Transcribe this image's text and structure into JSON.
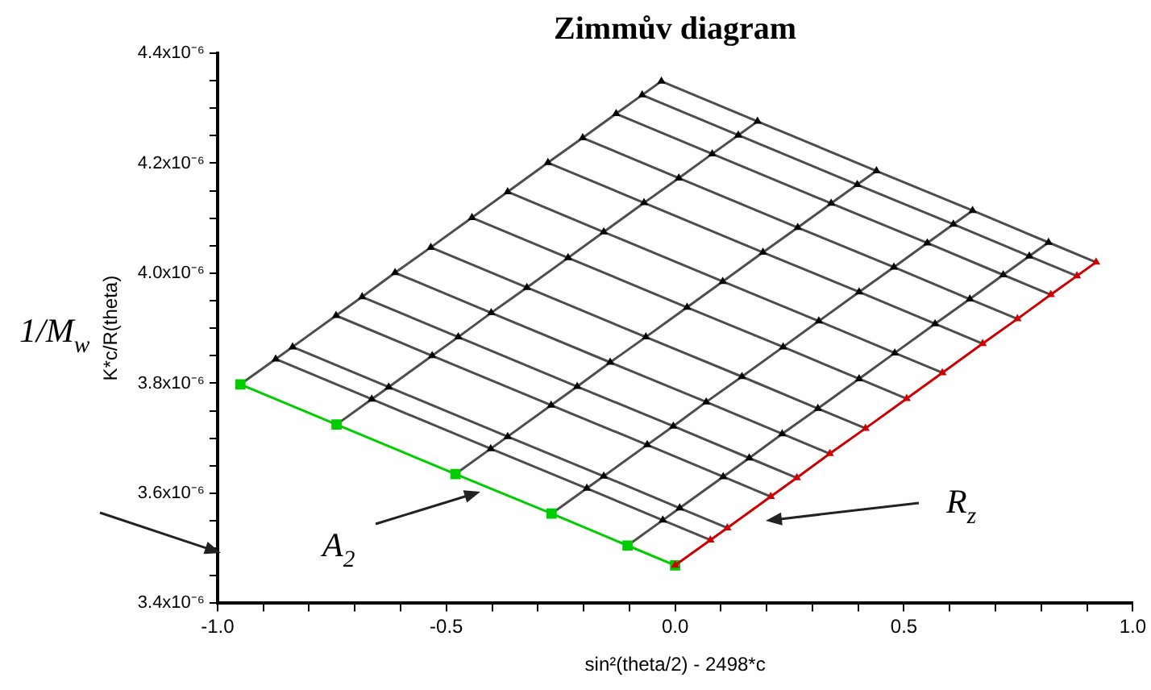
{
  "chart_data": {
    "type": "line",
    "title": "Zimmův diagram",
    "xlabel": "sin²(theta/2) - 2498*c",
    "ylabel": "K*c/R(theta)",
    "xlim": [
      -1.0,
      1.0
    ],
    "xticks": [
      {
        "value": -1.0,
        "label": "-1.0"
      },
      {
        "value": -0.9,
        "label": null
      },
      {
        "value": -0.8,
        "label": null
      },
      {
        "value": -0.7,
        "label": null
      },
      {
        "value": -0.6,
        "label": null
      },
      {
        "value": -0.5,
        "label": "-0.5"
      },
      {
        "value": -0.4,
        "label": null
      },
      {
        "value": -0.3,
        "label": null
      },
      {
        "value": -0.2,
        "label": null
      },
      {
        "value": -0.1,
        "label": null
      },
      {
        "value": 0.0,
        "label": "0.0"
      },
      {
        "value": 0.1,
        "label": null
      },
      {
        "value": 0.2,
        "label": null
      },
      {
        "value": 0.3,
        "label": null
      },
      {
        "value": 0.4,
        "label": null
      },
      {
        "value": 0.5,
        "label": "0.5"
      },
      {
        "value": 0.6,
        "label": null
      },
      {
        "value": 0.7,
        "label": null
      },
      {
        "value": 0.8,
        "label": null
      },
      {
        "value": 0.9,
        "label": null
      },
      {
        "value": 1.0,
        "label": "1.0"
      }
    ],
    "ylim": [
      3.4e-06,
      4.4e-06
    ],
    "yticks": [
      {
        "value": 3.4e-06,
        "label": "3.4x10⁻⁶"
      },
      {
        "value": 3.45e-06,
        "label": null
      },
      {
        "value": 3.5e-06,
        "label": null
      },
      {
        "value": 3.55e-06,
        "label": null
      },
      {
        "value": 3.6e-06,
        "label": "3.6x10⁻⁶"
      },
      {
        "value": 3.65e-06,
        "label": null
      },
      {
        "value": 3.7e-06,
        "label": null
      },
      {
        "value": 3.75e-06,
        "label": null
      },
      {
        "value": 3.8e-06,
        "label": "3.8x10⁻⁶"
      },
      {
        "value": 3.85e-06,
        "label": null
      },
      {
        "value": 3.9e-06,
        "label": null
      },
      {
        "value": 3.95e-06,
        "label": null
      },
      {
        "value": 4e-06,
        "label": "4.0x10⁻⁶"
      },
      {
        "value": 4.05e-06,
        "label": null
      },
      {
        "value": 4.1e-06,
        "label": null
      },
      {
        "value": 4.15e-06,
        "label": null
      },
      {
        "value": 4.2e-06,
        "label": "4.2x10⁻⁶"
      },
      {
        "value": 4.25e-06,
        "label": null
      },
      {
        "value": 4.3e-06,
        "label": null
      },
      {
        "value": 4.35e-06,
        "label": null
      },
      {
        "value": 4.4e-06,
        "label": "4.4x10⁻⁶"
      }
    ],
    "annotations": [
      "1/M$_{w}$",
      "A$_{2}$",
      "R$_{z}$"
    ],
    "series": [
      {
        "type": "line",
        "color": "#4d4d4d",
        "marker": "none",
        "x": [
          -0.104,
          -0.027,
          0.01,
          0.105,
          0.162,
          0.234,
          0.312,
          0.402,
          0.48,
          0.568,
          0.644,
          0.717,
          0.774,
          0.816
        ],
        "values": [
          3.505e-06,
          3.551e-06,
          3.573e-06,
          3.63e-06,
          3.664e-06,
          3.708e-06,
          3.754e-06,
          3.808e-06,
          3.855e-06,
          3.908e-06,
          3.953e-06,
          3.997e-06,
          4.031e-06,
          4.056e-06
        ]
      },
      {
        "type": "line",
        "color": "#4d4d4d",
        "marker": "none",
        "x": [
          -0.27,
          -0.193,
          -0.156,
          -0.061,
          -0.004,
          0.068,
          0.146,
          0.236,
          0.314,
          0.402,
          0.478,
          0.551,
          0.608,
          0.65
        ],
        "values": [
          3.563e-06,
          3.609e-06,
          3.631e-06,
          3.688e-06,
          3.722e-06,
          3.766e-06,
          3.812e-06,
          3.866e-06,
          3.913e-06,
          3.966e-06,
          4.011e-06,
          4.055e-06,
          4.089e-06,
          4.114e-06
        ]
      },
      {
        "type": "line",
        "color": "#4d4d4d",
        "marker": "none",
        "x": [
          -0.48,
          -0.403,
          -0.366,
          -0.271,
          -0.214,
          -0.142,
          -0.064,
          0.026,
          0.104,
          0.192,
          0.268,
          0.341,
          0.398,
          0.44
        ],
        "values": [
          3.635e-06,
          3.681e-06,
          3.703e-06,
          3.76e-06,
          3.794e-06,
          3.838e-06,
          3.884e-06,
          3.938e-06,
          3.985e-06,
          4.038e-06,
          4.083e-06,
          4.127e-06,
          4.161e-06,
          4.186e-06
        ]
      },
      {
        "type": "line",
        "color": "#4d4d4d",
        "marker": "none",
        "x": [
          -0.74,
          -0.663,
          -0.626,
          -0.531,
          -0.474,
          -0.402,
          -0.324,
          -0.234,
          -0.156,
          -0.068,
          0.008,
          0.081,
          0.138,
          0.18
        ],
        "values": [
          3.725e-06,
          3.771e-06,
          3.793e-06,
          3.85e-06,
          3.884e-06,
          3.928e-06,
          3.974e-06,
          4.028e-06,
          4.075e-06,
          4.128e-06,
          4.173e-06,
          4.217e-06,
          4.251e-06,
          4.276e-06
        ]
      },
      {
        "type": "line",
        "color": "#4d4d4d",
        "marker": "none",
        "x": [
          -0.95,
          -0.873,
          -0.836,
          -0.741,
          -0.684,
          -0.612,
          -0.534,
          -0.444,
          -0.366,
          -0.278,
          -0.202,
          -0.129,
          -0.072,
          -0.03
        ],
        "values": [
          3.798e-06,
          3.844e-06,
          3.866e-06,
          3.923e-06,
          3.957e-06,
          4.001e-06,
          4.047e-06,
          4.101e-06,
          4.148e-06,
          4.201e-06,
          4.246e-06,
          4.29e-06,
          4.324e-06,
          4.349e-06
        ]
      },
      {
        "type": "line",
        "color": "#4d4d4d",
        "marker": "none",
        "x": [
          -0.873,
          -0.663,
          -0.403,
          -0.193,
          -0.027,
          0.077
        ],
        "values": [
          3.844e-06,
          3.771e-06,
          3.681e-06,
          3.609e-06,
          3.551e-06,
          3.515e-06
        ]
      },
      {
        "type": "line",
        "color": "#4d4d4d",
        "marker": "none",
        "x": [
          -0.836,
          -0.626,
          -0.366,
          -0.156,
          0.01,
          0.114
        ],
        "values": [
          3.866e-06,
          3.793e-06,
          3.703e-06,
          3.631e-06,
          3.573e-06,
          3.537e-06
        ]
      },
      {
        "type": "line",
        "color": "#4d4d4d",
        "marker": "none",
        "x": [
          -0.741,
          -0.531,
          -0.271,
          -0.061,
          0.105,
          0.209
        ],
        "values": [
          3.923e-06,
          3.85e-06,
          3.76e-06,
          3.688e-06,
          3.63e-06,
          3.594e-06
        ]
      },
      {
        "type": "line",
        "color": "#4d4d4d",
        "marker": "none",
        "x": [
          -0.684,
          -0.474,
          -0.214,
          -0.004,
          0.162,
          0.266
        ],
        "values": [
          3.957e-06,
          3.884e-06,
          3.794e-06,
          3.722e-06,
          3.664e-06,
          3.628e-06
        ]
      },
      {
        "type": "line",
        "color": "#4d4d4d",
        "marker": "none",
        "x": [
          -0.612,
          -0.402,
          -0.142,
          0.068,
          0.234,
          0.338
        ],
        "values": [
          4.001e-06,
          3.928e-06,
          3.838e-06,
          3.766e-06,
          3.708e-06,
          3.672e-06
        ]
      },
      {
        "type": "line",
        "color": "#4d4d4d",
        "marker": "none",
        "x": [
          -0.534,
          -0.324,
          -0.064,
          0.146,
          0.312,
          0.416
        ],
        "values": [
          4.047e-06,
          3.974e-06,
          3.884e-06,
          3.812e-06,
          3.754e-06,
          3.718e-06
        ]
      },
      {
        "type": "line",
        "color": "#4d4d4d",
        "marker": "none",
        "x": [
          -0.444,
          -0.234,
          0.026,
          0.236,
          0.402,
          0.506
        ],
        "values": [
          4.101e-06,
          4.028e-06,
          3.938e-06,
          3.866e-06,
          3.808e-06,
          3.772e-06
        ]
      },
      {
        "type": "line",
        "color": "#4d4d4d",
        "marker": "none",
        "x": [
          -0.366,
          -0.156,
          0.104,
          0.314,
          0.48,
          0.584
        ],
        "values": [
          4.148e-06,
          4.075e-06,
          3.985e-06,
          3.913e-06,
          3.855e-06,
          3.819e-06
        ]
      },
      {
        "type": "line",
        "color": "#4d4d4d",
        "marker": "none",
        "x": [
          -0.278,
          -0.068,
          0.192,
          0.402,
          0.568,
          0.672
        ],
        "values": [
          4.201e-06,
          4.128e-06,
          4.038e-06,
          3.966e-06,
          3.908e-06,
          3.872e-06
        ]
      },
      {
        "type": "line",
        "color": "#4d4d4d",
        "marker": "none",
        "x": [
          -0.202,
          0.008,
          0.268,
          0.478,
          0.644,
          0.748
        ],
        "values": [
          4.246e-06,
          4.173e-06,
          4.083e-06,
          4.011e-06,
          3.953e-06,
          3.917e-06
        ]
      },
      {
        "type": "line",
        "color": "#4d4d4d",
        "marker": "none",
        "x": [
          -0.129,
          0.081,
          0.341,
          0.551,
          0.717,
          0.821
        ],
        "values": [
          4.29e-06,
          4.217e-06,
          4.127e-06,
          4.055e-06,
          3.997e-06,
          3.961e-06
        ]
      },
      {
        "type": "line",
        "color": "#4d4d4d",
        "marker": "none",
        "x": [
          -0.072,
          0.138,
          0.398,
          0.608,
          0.774,
          0.878
        ],
        "values": [
          4.324e-06,
          4.251e-06,
          4.161e-06,
          4.089e-06,
          4.031e-06,
          3.995e-06
        ]
      },
      {
        "type": "line",
        "color": "#4d4d4d",
        "marker": "none",
        "x": [
          -0.03,
          0.18,
          0.44,
          0.65,
          0.816,
          0.92
        ],
        "values": [
          4.349e-06,
          4.276e-06,
          4.186e-06,
          4.114e-06,
          4.056e-06,
          4.02e-06
        ]
      },
      {
        "type": "scatter",
        "color": "#000000",
        "marker": "triangle",
        "x": [
          -0.027,
          0.01,
          0.105,
          0.162,
          0.234,
          0.312,
          0.402,
          0.48,
          0.568,
          0.644,
          0.717,
          0.774,
          0.816,
          -0.193,
          -0.156,
          -0.061,
          -0.004,
          0.068,
          0.146,
          0.236,
          0.314,
          0.402,
          0.478,
          0.551,
          0.608,
          0.65,
          -0.403,
          -0.366,
          -0.271,
          -0.214,
          -0.142,
          -0.064,
          0.026,
          0.104,
          0.192,
          0.268,
          0.341,
          0.398,
          0.44,
          -0.663,
          -0.626,
          -0.531,
          -0.474,
          -0.402,
          -0.324,
          -0.234,
          -0.156,
          -0.068,
          0.008,
          0.081,
          0.138,
          0.18,
          -0.873,
          -0.836,
          -0.741,
          -0.684,
          -0.612,
          -0.534,
          -0.444,
          -0.366,
          -0.278,
          -0.202,
          -0.129,
          -0.072,
          -0.03
        ],
        "values": [
          3.551e-06,
          3.573e-06,
          3.63e-06,
          3.664e-06,
          3.708e-06,
          3.754e-06,
          3.808e-06,
          3.855e-06,
          3.908e-06,
          3.953e-06,
          3.997e-06,
          4.031e-06,
          4.056e-06,
          3.609e-06,
          3.631e-06,
          3.688e-06,
          3.722e-06,
          3.766e-06,
          3.812e-06,
          3.866e-06,
          3.913e-06,
          3.966e-06,
          4.011e-06,
          4.055e-06,
          4.089e-06,
          4.114e-06,
          3.681e-06,
          3.703e-06,
          3.76e-06,
          3.794e-06,
          3.838e-06,
          3.884e-06,
          3.938e-06,
          3.985e-06,
          4.038e-06,
          4.083e-06,
          4.127e-06,
          4.161e-06,
          4.186e-06,
          3.771e-06,
          3.793e-06,
          3.85e-06,
          3.884e-06,
          3.928e-06,
          3.974e-06,
          4.028e-06,
          4.075e-06,
          4.128e-06,
          4.173e-06,
          4.217e-06,
          4.251e-06,
          4.276e-06,
          3.844e-06,
          3.866e-06,
          3.923e-06,
          3.957e-06,
          4.001e-06,
          4.047e-06,
          4.101e-06,
          4.148e-06,
          4.201e-06,
          4.246e-06,
          4.29e-06,
          4.324e-06,
          4.349e-06
        ]
      },
      {
        "type": "line",
        "color": "#00cc00",
        "marker": "square",
        "x": [
          -0.95,
          -0.74,
          -0.48,
          -0.27,
          -0.104,
          0.0
        ],
        "values": [
          3.798e-06,
          3.725e-06,
          3.635e-06,
          3.563e-06,
          3.505e-06,
          3.469e-06
        ]
      },
      {
        "type": "line",
        "color": "#cc0000",
        "marker": "triangle",
        "x": [
          0.0,
          0.077,
          0.114,
          0.209,
          0.266,
          0.338,
          0.416,
          0.506,
          0.584,
          0.672,
          0.748,
          0.821,
          0.878,
          0.92
        ],
        "values": [
          3.469e-06,
          3.515e-06,
          3.537e-06,
          3.594e-06,
          3.628e-06,
          3.672e-06,
          3.718e-06,
          3.772e-06,
          3.819e-06,
          3.872e-06,
          3.917e-06,
          3.961e-06,
          3.995e-06,
          4.02e-06
        ]
      }
    ]
  }
}
